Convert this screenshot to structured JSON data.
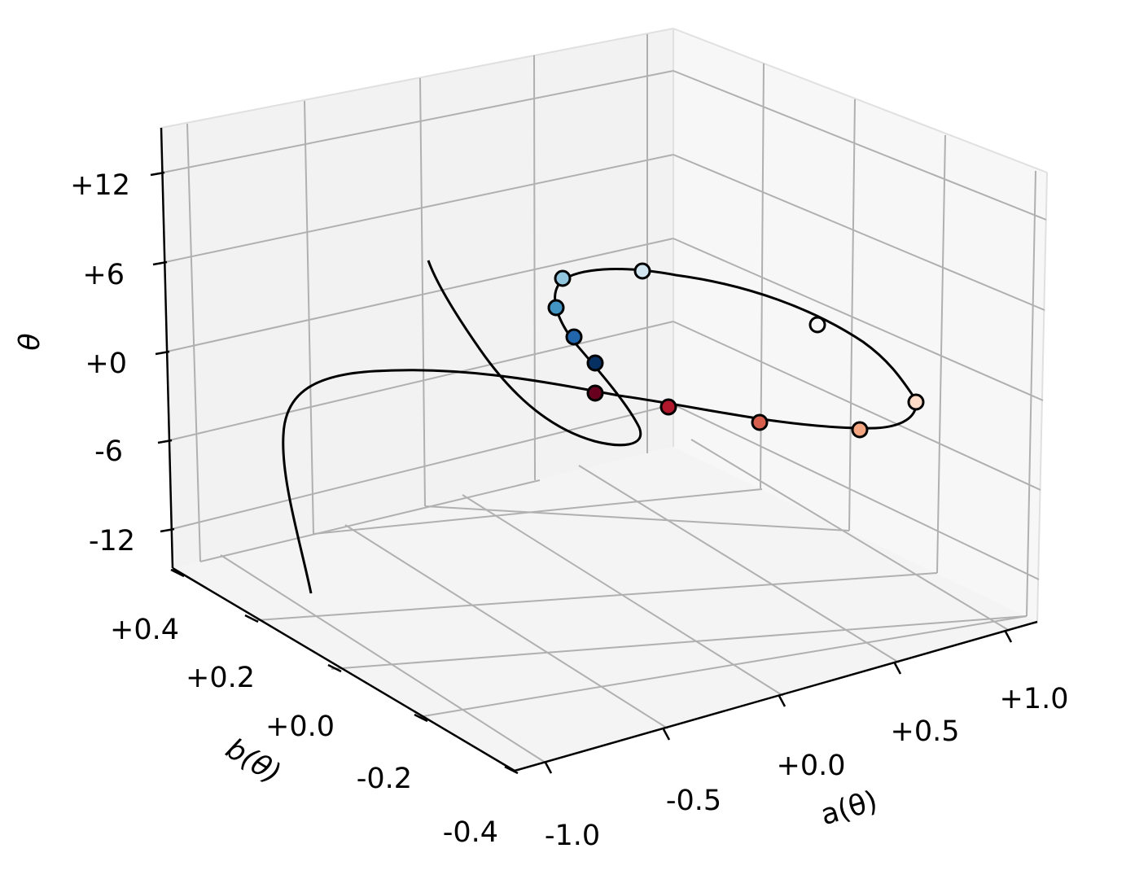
{
  "chart_data": {
    "type": "line3d",
    "title": "",
    "axes": {
      "x": {
        "label": "a(θ)",
        "ticks": [
          "-1.0",
          "-0.5",
          "+0.0",
          "+0.5",
          "+1.0"
        ],
        "tick_values": [
          -1.0,
          -0.5,
          0.0,
          0.5,
          1.0
        ],
        "lim": [
          -1.15,
          1.15
        ]
      },
      "y": {
        "label": "b(θ)",
        "ticks": [
          "-0.4",
          "-0.2",
          "+0.0",
          "+0.2",
          "+0.4"
        ],
        "tick_values": [
          -0.4,
          -0.2,
          0.0,
          0.2,
          0.4
        ],
        "lim": [
          -0.45,
          0.45
        ]
      },
      "z": {
        "label": "θ",
        "ticks": [
          "-12",
          "-6",
          "+0",
          "+6",
          "+12"
        ],
        "tick_values": [
          -12,
          -6,
          0,
          6,
          12
        ],
        "lim": [
          -13.5,
          13.5
        ]
      }
    },
    "grid": true,
    "view": {
      "elevation_deg": 20,
      "azimuth_deg": -50
    },
    "curve": {
      "color": "#000000",
      "description_points": [
        {
          "a": 0.95,
          "b": 0.32,
          "theta": -12.6
        },
        {
          "a": 0.93,
          "b": 0.28,
          "theta": -6
        },
        {
          "a": 0.8,
          "b": 0.0,
          "theta": -1.5
        },
        {
          "a": 0.3,
          "b": -0.2,
          "theta": -0.5
        },
        {
          "a": -0.2,
          "b": -0.25,
          "theta": -1.2
        },
        {
          "a": -0.5,
          "b": -0.22,
          "theta": -2.6
        },
        {
          "a": -0.55,
          "b": -0.05,
          "theta": -4.5
        },
        {
          "a": -0.35,
          "b": 0.05,
          "theta": -3
        },
        {
          "a": 0.1,
          "b": 0.07,
          "theta": 5.5
        },
        {
          "a": 0.05,
          "b": 0.15,
          "theta": 12.5
        }
      ]
    },
    "markers": [
      {
        "color": "#67001f",
        "a": -0.5,
        "b": 0.0,
        "theta": -1.0
      },
      {
        "color": "#b2182b",
        "a": -0.3,
        "b": -0.05,
        "theta": -1.2
      },
      {
        "color": "#d6604d",
        "a": -0.02,
        "b": -0.12,
        "theta": -1.4
      },
      {
        "color": "#f4a582",
        "a": 0.35,
        "b": -0.2,
        "theta": -1.6
      },
      {
        "color": "#fddbc7",
        "a": 0.58,
        "b": -0.25,
        "theta": -1.2
      },
      {
        "color": "#f7f7f7",
        "a": 0.45,
        "b": -0.12,
        "theta": 1.8
      },
      {
        "color": "#d1e5f0",
        "a": -0.1,
        "b": 0.08,
        "theta": 2.8
      },
      {
        "color": "#92c5de",
        "a": -0.4,
        "b": 0.17,
        "theta": 2.2
      },
      {
        "color": "#4393c3",
        "a": -0.47,
        "b": 0.14,
        "theta": 0.7
      },
      {
        "color": "#2166ac",
        "a": -0.45,
        "b": 0.08,
        "theta": -0.3
      },
      {
        "color": "#053061",
        "a": -0.44,
        "b": 0.02,
        "theta": -0.9
      }
    ]
  }
}
